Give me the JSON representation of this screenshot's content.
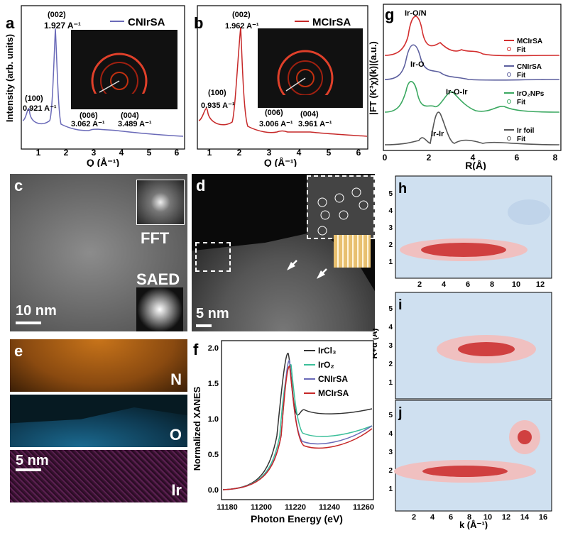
{
  "panels": {
    "a": "a",
    "b": "b",
    "c": "c",
    "d": "d",
    "e": "e",
    "f": "f",
    "g": "g",
    "h": "h",
    "i": "i",
    "j": "j"
  },
  "panel_a": {
    "legend": "CNIrSA",
    "ylabel": "Intensity (arb. units)",
    "xlabel": "Q (Å⁻¹)",
    "peaks": [
      {
        "hkl": "(100)",
        "q": "0.921 A⁻¹"
      },
      {
        "hkl": "(002)",
        "q": "1.927 A⁻¹"
      },
      {
        "hkl": "(006)",
        "q": "3.062 A⁻¹"
      },
      {
        "hkl": "(004)",
        "q": "3.489 A⁻¹"
      }
    ],
    "xticks": [
      "1",
      "2",
      "3",
      "4",
      "5",
      "6"
    ]
  },
  "panel_b": {
    "legend": "MCIrSA",
    "xlabel": "Q (Å⁻¹)",
    "peaks": [
      {
        "hkl": "(100)",
        "q": "0.935 A⁻¹"
      },
      {
        "hkl": "(002)",
        "q": "1.962 A⁻¹"
      },
      {
        "hkl": "(006)",
        "q": "3.006 A⁻¹"
      },
      {
        "hkl": "(004)",
        "q": "3.961 A⁻¹"
      }
    ],
    "xticks": [
      "1",
      "2",
      "3",
      "4",
      "5",
      "6"
    ]
  },
  "panel_g": {
    "ylabel": "|FT (K³χ)(k)|(a.u.)",
    "xlabel": "R(Å)",
    "xticks": [
      "0",
      "2",
      "4",
      "6",
      "8"
    ],
    "annotations": [
      "Ir-O/N",
      "Ir-O",
      "Ir-O-Ir",
      "Ir-Ir"
    ],
    "legends": [
      {
        "name": "MCIrSA",
        "fit": "Fit",
        "color": "#d32f2f"
      },
      {
        "name": "CNIrSA",
        "fit": "Fit",
        "color": "#5c5f9e"
      },
      {
        "name": "IrO₂NPs",
        "fit": "Fit",
        "color": "#3aa860"
      },
      {
        "name": "Ir foil",
        "fit": "Fit",
        "color": "#555555"
      }
    ]
  },
  "panel_c": {
    "fft": "FFT",
    "saed": "SAED",
    "scale": "10 nm"
  },
  "panel_d": {
    "scale": "5 nm"
  },
  "panel_e": {
    "maps": [
      "N",
      "O",
      "Ir"
    ],
    "scale": "5 nm"
  },
  "panel_f": {
    "ylabel": "Normalized XANES",
    "xlabel": "Photon Energy (eV)",
    "xticks": [
      "11180",
      "11200",
      "11220",
      "11240",
      "11260"
    ],
    "yticks": [
      "0.0",
      "0.5",
      "1.0",
      "1.5",
      "2.0"
    ],
    "legend": [
      {
        "name": "IrCl₃",
        "color": "#333333"
      },
      {
        "name": "IrO₂",
        "color": "#3bbf9a"
      },
      {
        "name": "CNIrSA",
        "color": "#6a6ab8"
      },
      {
        "name": "MCIrSA",
        "color": "#d32f2f"
      }
    ]
  },
  "panel_hij": {
    "ylabel": "R+α (Å)",
    "xlabel": "k (Å⁻¹)",
    "h_xticks": [
      "2",
      "4",
      "6",
      "8",
      "10",
      "12"
    ],
    "j_xticks": [
      "2",
      "4",
      "6",
      "8",
      "10",
      "12",
      "14",
      "16"
    ],
    "yticks": [
      "1",
      "2",
      "3",
      "4",
      "5"
    ]
  }
}
